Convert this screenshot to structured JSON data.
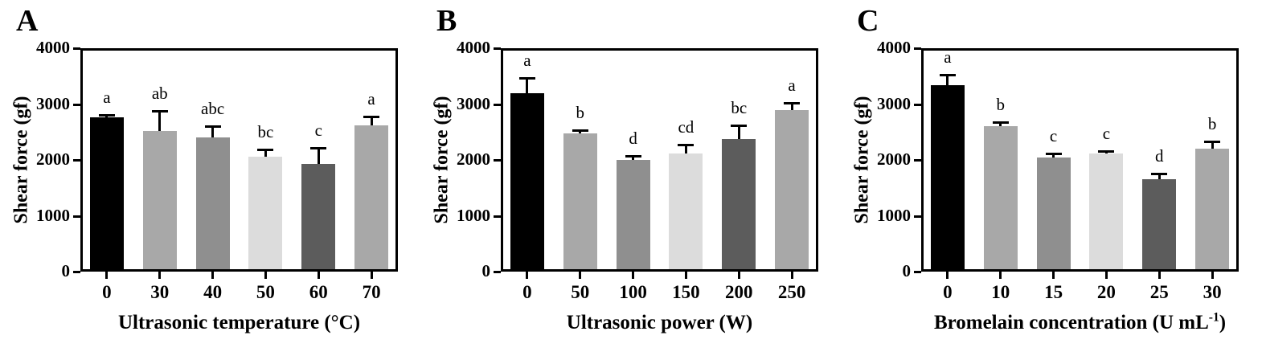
{
  "figure": {
    "background_color": "#ffffff",
    "axis_color": "#000000"
  },
  "chart_data": [
    {
      "type": "bar",
      "panel_label": "A",
      "ylabel": "Shear force (gf)",
      "xlabel_parts": [
        {
          "text": "Ultrasonic temperature (°C)",
          "sup": false
        }
      ],
      "categories": [
        "0",
        "30",
        "40",
        "50",
        "60",
        "70"
      ],
      "values": [
        2760,
        2520,
        2410,
        2060,
        1930,
        2620
      ],
      "errors": [
        40,
        360,
        190,
        130,
        290,
        150
      ],
      "sig_letters": [
        "a",
        "ab",
        "abc",
        "bc",
        "c",
        "a"
      ],
      "bar_colors": [
        "#000000",
        "#a8a8a8",
        "#8f8f8f",
        "#dcdcdc",
        "#5c5c5c",
        "#a8a8a8"
      ],
      "ylim": [
        0,
        4000
      ],
      "yticks": [
        0,
        1000,
        2000,
        3000,
        4000
      ],
      "grid": false,
      "legend": null
    },
    {
      "type": "bar",
      "panel_label": "B",
      "ylabel": "Shear force (gf)",
      "xlabel_parts": [
        {
          "text": "Ultrasonic power (W)",
          "sup": false
        }
      ],
      "categories": [
        "0",
        "50",
        "100",
        "150",
        "200",
        "250"
      ],
      "values": [
        3200,
        2480,
        2000,
        2110,
        2370,
        2890
      ],
      "errors": [
        270,
        50,
        70,
        160,
        250,
        130
      ],
      "sig_letters": [
        "a",
        "b",
        "d",
        "cd",
        "bc",
        "a"
      ],
      "bar_colors": [
        "#000000",
        "#a8a8a8",
        "#8f8f8f",
        "#dcdcdc",
        "#5c5c5c",
        "#a8a8a8"
      ],
      "ylim": [
        0,
        4000
      ],
      "yticks": [
        0,
        1000,
        2000,
        3000,
        4000
      ],
      "grid": false,
      "legend": null
    },
    {
      "type": "bar",
      "panel_label": "C",
      "ylabel": "Shear force (gf)",
      "xlabel_parts": [
        {
          "text": "Bromelain concentration (U mL",
          "sup": false
        },
        {
          "text": "-1",
          "sup": true
        },
        {
          "text": ")",
          "sup": false
        }
      ],
      "categories": [
        "0",
        "10",
        "15",
        "20",
        "25",
        "30"
      ],
      "values": [
        3340,
        2610,
        2040,
        2110,
        1660,
        2200
      ],
      "errors": [
        180,
        70,
        70,
        50,
        90,
        130
      ],
      "sig_letters": [
        "a",
        "b",
        "c",
        "c",
        "d",
        "b"
      ],
      "bar_colors": [
        "#000000",
        "#a8a8a8",
        "#8f8f8f",
        "#dcdcdc",
        "#5c5c5c",
        "#a8a8a8"
      ],
      "ylim": [
        0,
        4000
      ],
      "yticks": [
        0,
        1000,
        2000,
        3000,
        4000
      ],
      "grid": false,
      "legend": null
    }
  ]
}
